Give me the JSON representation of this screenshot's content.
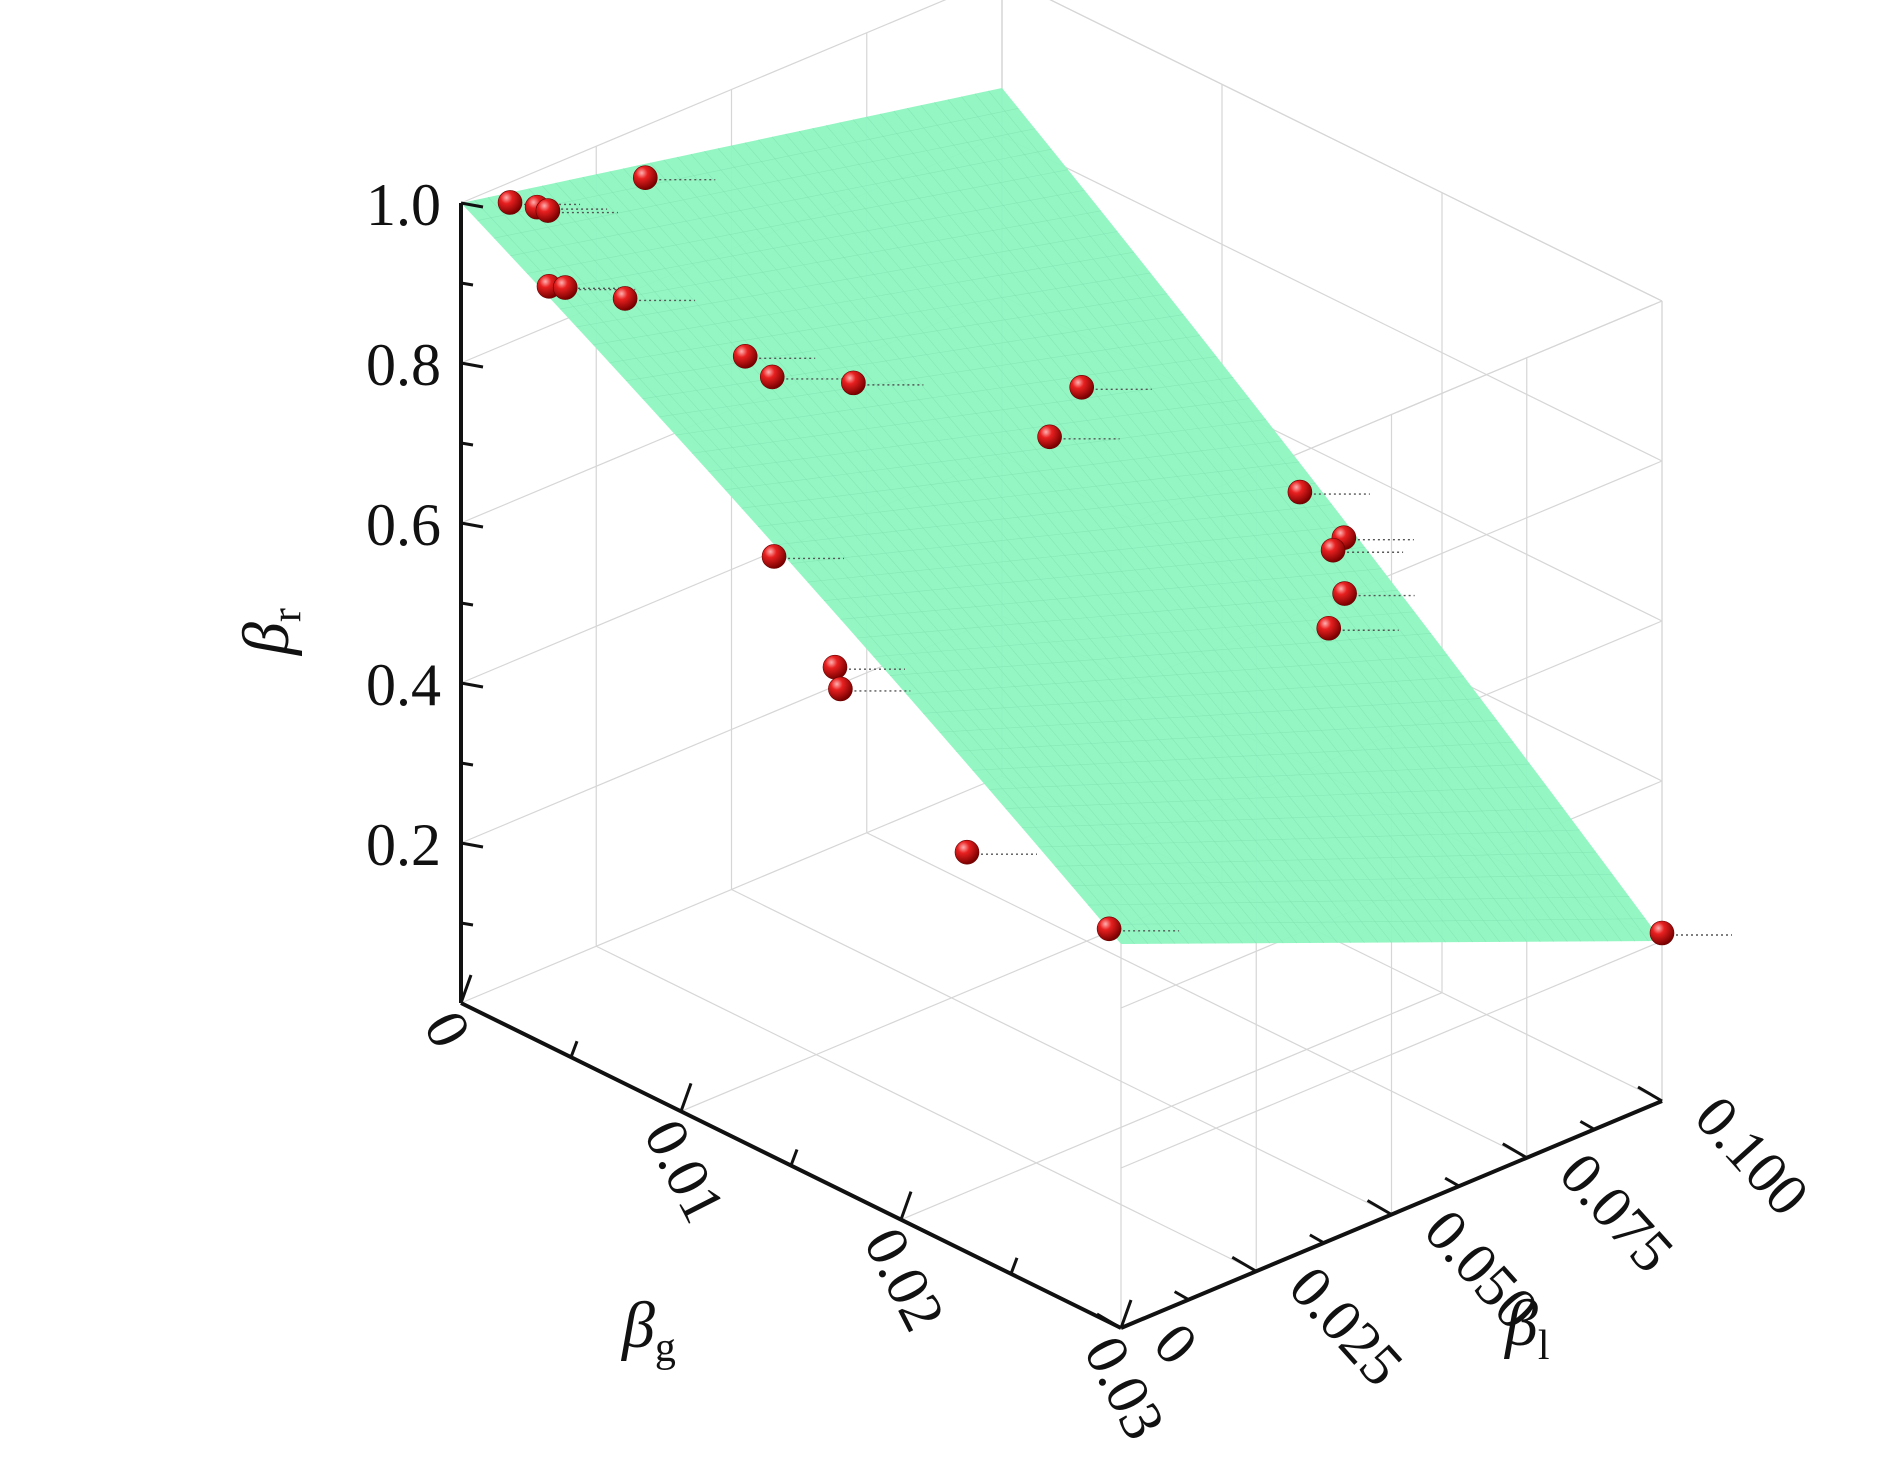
{
  "chart_data": {
    "type": "scatter",
    "subtype": "3d-scatter-with-surface",
    "title": "",
    "x_axis": {
      "label": "β",
      "label_subscript": "g",
      "ticks": [
        "0",
        "0.01",
        "0.02",
        "0.03"
      ],
      "range": [
        0,
        0.03
      ]
    },
    "y_axis": {
      "label": "β",
      "label_subscript": "l",
      "ticks": [
        "0",
        "0.025",
        "0.050",
        "0.075",
        "0.100"
      ],
      "range": [
        0,
        0.1
      ]
    },
    "z_axis": {
      "label": "β",
      "label_subscript": "r",
      "ticks": [
        "0.2",
        "0.4",
        "0.6",
        "0.8",
        "1.0"
      ],
      "range": [
        0,
        1.0
      ]
    },
    "grid": true,
    "surface": {
      "color": "#8ef5c0",
      "samples": [
        {
          "beta_g": 0,
          "beta_l": 0,
          "beta_r": 1.0
        },
        {
          "beta_g": 0,
          "beta_l": 0.1,
          "beta_r": 0.86
        },
        {
          "beta_g": 0.03,
          "beta_l": 0,
          "beta_r": 0.48
        },
        {
          "beta_g": 0.03,
          "beta_l": 0.1,
          "beta_r": 0.2
        }
      ]
    },
    "points": {
      "color": "#e01010",
      "data": [
        {
          "beta_g": 0.001,
          "beta_l": 0.005,
          "beta_r": 1.0
        },
        {
          "beta_g": 0.001,
          "beta_l": 0.01,
          "beta_r": 0.98
        },
        {
          "beta_g": 0.001,
          "beta_l": 0.012,
          "beta_r": 0.97
        },
        {
          "beta_g": 0.001,
          "beta_l": 0.03,
          "beta_r": 0.96
        },
        {
          "beta_g": 0.004,
          "beta_l": 0.0,
          "beta_r": 0.95
        },
        {
          "beta_g": 0.004,
          "beta_l": 0.003,
          "beta_r": 0.94
        },
        {
          "beta_g": 0.005,
          "beta_l": 0.01,
          "beta_r": 0.92
        },
        {
          "beta_g": 0.008,
          "beta_l": 0.02,
          "beta_r": 0.86
        },
        {
          "beta_g": 0.008,
          "beta_l": 0.025,
          "beta_r": 0.82
        },
        {
          "beta_g": 0.008,
          "beta_l": 0.04,
          "beta_r": 0.77
        },
        {
          "beta_g": 0.013,
          "beta_l": 0.005,
          "beta_r": 0.72
        },
        {
          "beta_g": 0.017,
          "beta_l": 0.0,
          "beta_r": 0.65
        },
        {
          "beta_g": 0.017,
          "beta_l": 0.001,
          "beta_r": 0.62
        },
        {
          "beta_g": 0.012,
          "beta_l": 0.06,
          "beta_r": 0.7
        },
        {
          "beta_g": 0.011,
          "beta_l": 0.07,
          "beta_r": 0.72
        },
        {
          "beta_g": 0.023,
          "beta_l": 0.0,
          "beta_r": 0.5
        },
        {
          "beta_g": 0.027,
          "beta_l": 0.01,
          "beta_r": 0.43
        },
        {
          "beta_g": 0.016,
          "beta_l": 0.09,
          "beta_r": 0.6
        },
        {
          "beta_g": 0.018,
          "beta_l": 0.09,
          "beta_r": 0.57
        },
        {
          "beta_g": 0.018,
          "beta_l": 0.088,
          "beta_r": 0.56
        },
        {
          "beta_g": 0.02,
          "beta_l": 0.082,
          "beta_r": 0.55
        },
        {
          "beta_g": 0.021,
          "beta_l": 0.075,
          "beta_r": 0.54
        },
        {
          "beta_g": 0.03,
          "beta_l": 0.1,
          "beta_r": 0.21
        }
      ]
    }
  }
}
